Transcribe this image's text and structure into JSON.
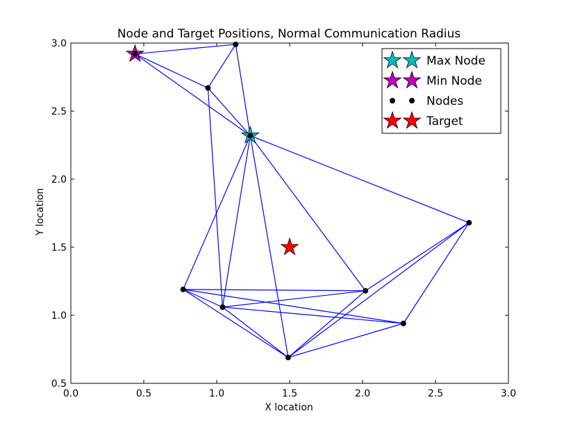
{
  "chart_data": {
    "type": "scatter",
    "title": "Node and Target Positions, Normal Communication Radius",
    "xlabel": "X location",
    "ylabel": "Y location",
    "xlim": [
      0.0,
      3.0
    ],
    "ylim": [
      0.5,
      3.0
    ],
    "x_ticks": [
      "0.0",
      "0.5",
      "1.0",
      "1.5",
      "2.0",
      "2.5",
      "3.0"
    ],
    "y_ticks": [
      "0.5",
      "1.0",
      "1.5",
      "2.0",
      "2.5",
      "3.0"
    ],
    "grid": false,
    "legend_position": "top-right",
    "legend": [
      {
        "label": "Max Node",
        "marker": "star",
        "color": "#00bfbf"
      },
      {
        "label": "Min Node",
        "marker": "star",
        "color": "#bf00bf"
      },
      {
        "label": "Nodes",
        "marker": "dot",
        "color": "#000000"
      },
      {
        "label": "Target",
        "marker": "star",
        "color": "#ff0000"
      }
    ],
    "nodes": [
      {
        "x": 0.44,
        "y": 2.92
      },
      {
        "x": 1.13,
        "y": 2.99
      },
      {
        "x": 0.94,
        "y": 2.67
      },
      {
        "x": 1.23,
        "y": 2.32
      },
      {
        "x": 2.73,
        "y": 1.68
      },
      {
        "x": 0.77,
        "y": 1.19
      },
      {
        "x": 2.02,
        "y": 1.18
      },
      {
        "x": 1.04,
        "y": 1.06
      },
      {
        "x": 2.28,
        "y": 0.94
      },
      {
        "x": 1.49,
        "y": 0.69
      }
    ],
    "edges": [
      [
        0,
        1
      ],
      [
        0,
        2
      ],
      [
        0,
        3
      ],
      [
        1,
        2
      ],
      [
        1,
        3
      ],
      [
        2,
        3
      ],
      [
        2,
        7
      ],
      [
        3,
        4
      ],
      [
        3,
        5
      ],
      [
        3,
        6
      ],
      [
        3,
        7
      ],
      [
        3,
        9
      ],
      [
        4,
        6
      ],
      [
        4,
        8
      ],
      [
        4,
        9
      ],
      [
        5,
        6
      ],
      [
        5,
        7
      ],
      [
        5,
        8
      ],
      [
        5,
        9
      ],
      [
        6,
        7
      ],
      [
        6,
        9
      ],
      [
        7,
        8
      ],
      [
        7,
        9
      ],
      [
        8,
        9
      ]
    ],
    "max_node": {
      "x": 1.23,
      "y": 2.32
    },
    "min_node": {
      "x": 0.44,
      "y": 2.92
    },
    "target": {
      "x": 1.5,
      "y": 1.5
    },
    "edge_color": "#0000ff",
    "node_color": "#000000"
  }
}
